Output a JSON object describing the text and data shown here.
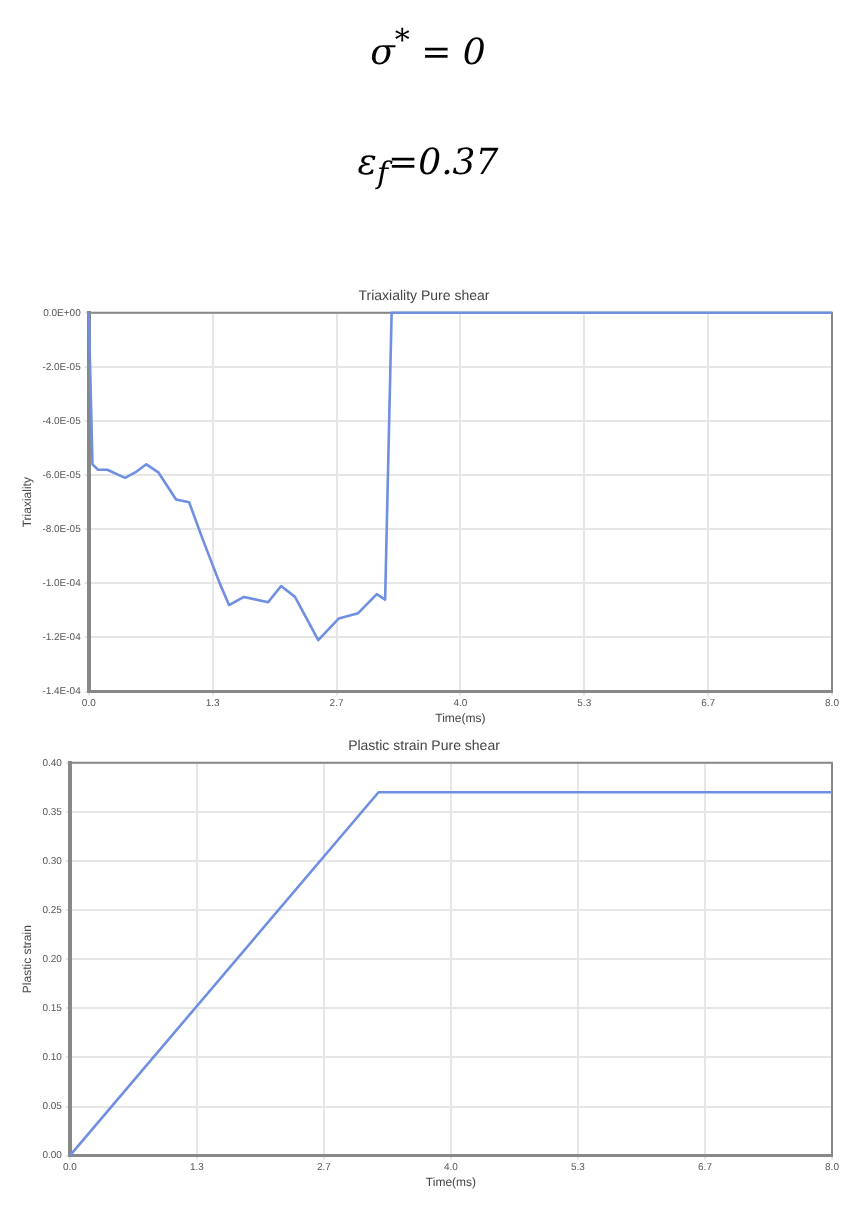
{
  "chart_data": [
    {
      "type": "line",
      "title": "Triaxiality Pure shear",
      "xlabel": "Time(ms)",
      "ylabel": "Triaxiality",
      "annotations": [
        "σ$^{*}$ = 0",
        "ε$_{f}$=0.37"
      ],
      "x": [
        0,
        0.04,
        0.1,
        0.2,
        0.39,
        0.5,
        0.62,
        0.75,
        0.94,
        1.08,
        1.23,
        1.41,
        1.51,
        1.67,
        1.93,
        2.07,
        2.22,
        2.47,
        2.69,
        2.9,
        3.1,
        3.19,
        3.26,
        8
      ],
      "series": [
        {
          "color": "#6f8fe0",
          "values": [
            0,
            -5.6e-05,
            -5.8e-05,
            -5.8e-05,
            -6.1e-05,
            -5.9e-05,
            -5.6e-05,
            -5.9e-05,
            -6.9e-05,
            -7e-05,
            -8.4e-05,
            -0.0001,
            -0.000108,
            -0.000105,
            -0.000107,
            -0.000101,
            -0.000105,
            -0.000121,
            -0.000113,
            -0.000111,
            -0.000104,
            -0.000106,
            0,
            0
          ]
        }
      ],
      "xlim": [
        0,
        8
      ],
      "xticks": [
        {
          "value": 0,
          "label": "0.0"
        },
        {
          "value": 1.3333,
          "label": "1.3"
        },
        {
          "value": 2.6667,
          "label": "2.7"
        },
        {
          "value": 4,
          "label": "4.0"
        },
        {
          "value": 5.3333,
          "label": "5.3"
        },
        {
          "value": 6.6667,
          "label": "6.7"
        },
        {
          "value": 8,
          "label": "8.0"
        }
      ],
      "ylim": [
        -0.00014,
        0
      ],
      "yticks": [
        {
          "value": -0.00014,
          "label": "-1.4E-04"
        },
        {
          "value": -0.00012,
          "label": "-1.2E-04"
        },
        {
          "value": -0.0001,
          "label": "-1.0E-04"
        },
        {
          "value": -8e-05,
          "label": "-8.0E-05"
        },
        {
          "value": -6e-05,
          "label": "-6.0E-05"
        },
        {
          "value": -4e-05,
          "label": "-4.0E-05"
        },
        {
          "value": -2e-05,
          "label": "-2.0E-05"
        },
        {
          "value": 0,
          "label": "0.0E+00"
        }
      ],
      "grid": true
    },
    {
      "type": "line",
      "title": "Plastic strain Pure shear",
      "xlabel": "Time(ms)",
      "ylabel": "Plastic strain",
      "x": [
        0,
        3.24,
        8
      ],
      "series": [
        {
          "color": "#6f8fe0",
          "values": [
            0,
            0.37,
            0.37
          ]
        }
      ],
      "xlim": [
        0,
        8
      ],
      "xticks": [
        {
          "value": 0,
          "label": "0.0"
        },
        {
          "value": 1.3333,
          "label": "1.3"
        },
        {
          "value": 2.6667,
          "label": "2.7"
        },
        {
          "value": 4,
          "label": "4.0"
        },
        {
          "value": 5.3333,
          "label": "5.3"
        },
        {
          "value": 6.6667,
          "label": "6.7"
        },
        {
          "value": 8,
          "label": "8.0"
        }
      ],
      "ylim": [
        0,
        0.4
      ],
      "yticks": [
        {
          "value": 0,
          "label": "0.00"
        },
        {
          "value": 0.05,
          "label": "0.05"
        },
        {
          "value": 0.1,
          "label": "0.10"
        },
        {
          "value": 0.15,
          "label": "0.15"
        },
        {
          "value": 0.2,
          "label": "0.20"
        },
        {
          "value": 0.25,
          "label": "0.25"
        },
        {
          "value": 0.3,
          "label": "0.30"
        },
        {
          "value": 0.35,
          "label": "0.35"
        },
        {
          "value": 0.4,
          "label": "0.40"
        }
      ],
      "grid": true
    }
  ]
}
